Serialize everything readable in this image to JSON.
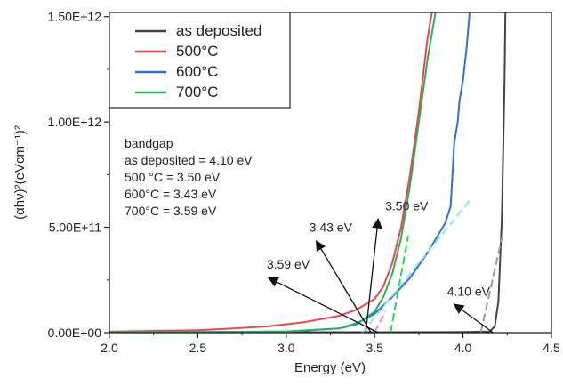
{
  "chart_data": {
    "type": "line",
    "xlabel": "Energy (eV)",
    "ylabel": "(αhν)²(eVcm⁻¹)²",
    "xlim": [
      2.0,
      4.5
    ],
    "ylim": [
      0,
      1520000000000.0
    ],
    "x_ticks": [
      2.0,
      2.5,
      3.0,
      3.5,
      4.0,
      4.5
    ],
    "x_tick_labels": [
      "2.0",
      "2.5",
      "3.0",
      "3.5",
      "4.0",
      "4.5"
    ],
    "y_ticks": [
      0,
      500000000000.0,
      1000000000000.0,
      1500000000000.0
    ],
    "y_tick_labels": [
      "0.00E+00",
      "5.00E+11",
      "1.00E+12",
      "1.50E+12"
    ],
    "grid": false,
    "legend_position": "top-left",
    "legend": [
      "as deposited",
      "500°C",
      "600°C",
      "700°C"
    ],
    "series": [
      {
        "name": "as deposited",
        "color": "#444444",
        "x": [
          2.0,
          3.0,
          3.5,
          4.0,
          4.15,
          4.18,
          4.2,
          4.22,
          4.235,
          4.24
        ],
        "y": [
          2000000000.0,
          2000000000.0,
          2000000000.0,
          3000000000.0,
          5000000000.0,
          30000000000.0,
          150000000000.0,
          550000000000.0,
          1200000000000.0,
          1550000000000.0
        ]
      },
      {
        "name": "500°C",
        "color": "#e8474f",
        "x": [
          2.0,
          2.3,
          2.5,
          2.7,
          2.9,
          3.1,
          3.3,
          3.4,
          3.5,
          3.55,
          3.6,
          3.65,
          3.7,
          3.75,
          3.8,
          3.83
        ],
        "y": [
          5000000000.0,
          9000000000.0,
          12000000000.0,
          20000000000.0,
          30000000000.0,
          50000000000.0,
          80000000000.0,
          110000000000.0,
          160000000000.0,
          220000000000.0,
          330000000000.0,
          500000000000.0,
          750000000000.0,
          1050000000000.0,
          1400000000000.0,
          1550000000000.0
        ]
      },
      {
        "name": "600°C",
        "color": "#2f6fd6",
        "x": [
          2.0,
          2.5,
          3.0,
          3.3,
          3.4,
          3.5,
          3.6,
          3.7,
          3.8,
          3.9,
          3.93,
          3.95,
          3.97,
          3.98,
          4.0,
          4.02,
          4.03,
          4.04
        ],
        "y": [
          2000000000.0,
          3000000000.0,
          5000000000.0,
          20000000000.0,
          45000000000.0,
          90000000000.0,
          170000000000.0,
          260000000000.0,
          380000000000.0,
          520000000000.0,
          600000000000.0,
          900000000000.0,
          1000000000000.0,
          1100000000000.0,
          1200000000000.0,
          1350000000000.0,
          1450000000000.0,
          1550000000000.0
        ]
      },
      {
        "name": "700°C",
        "color": "#2fae5a",
        "x": [
          2.0,
          2.5,
          3.0,
          3.3,
          3.4,
          3.5,
          3.55,
          3.6,
          3.65,
          3.7,
          3.75,
          3.8,
          3.85
        ],
        "y": [
          2000000000.0,
          3000000000.0,
          6000000000.0,
          20000000000.0,
          40000000000.0,
          100000000000.0,
          170000000000.0,
          280000000000.0,
          450000000000.0,
          700000000000.0,
          1000000000000.0,
          1300000000000.0,
          1550000000000.0
        ]
      }
    ],
    "tangent_lines": [
      {
        "color": "#9a9a9a",
        "x": [
          4.1,
          4.22
        ],
        "y": [
          0,
          450000000000.0
        ]
      },
      {
        "color": "#ff88cc",
        "x": [
          3.5,
          3.56
        ],
        "y": [
          0,
          100000000000.0
        ]
      },
      {
        "color": "#2fd64a",
        "x": [
          3.59,
          3.69
        ],
        "y": [
          0,
          460000000000.0
        ]
      },
      {
        "color": "#8ee3f2",
        "x": [
          3.43,
          4.05
        ],
        "y": [
          0,
          640000000000.0
        ]
      }
    ],
    "annotations": [
      {
        "text": "3.50 eV",
        "text_at": [
          3.56,
          580000000000.0
        ],
        "arrow_from": [
          3.45,
          0
        ],
        "arrow_to": [
          3.52,
          540000000000.0
        ]
      },
      {
        "text": "3.43 eV",
        "text_at": [
          3.13,
          480000000000.0
        ],
        "arrow_from": [
          3.48,
          0
        ],
        "arrow_to": [
          3.17,
          435000000000.0
        ]
      },
      {
        "text": "3.59 eV",
        "text_at": [
          2.89,
          305000000000.0
        ],
        "arrow_from": [
          3.52,
          0
        ],
        "arrow_to": [
          2.9,
          260000000000.0
        ]
      },
      {
        "text": "4.10 eV",
        "text_at": [
          3.91,
          175000000000.0
        ],
        "arrow_from": [
          4.17,
          0
        ],
        "arrow_to": [
          3.95,
          135000000000.0
        ]
      }
    ],
    "notes": [
      "bandgap",
      "as deposited = 4.10 eV",
      "500 °C = 3.50 eV",
      "600°C = 3.43 eV",
      "700°C = 3.59 eV"
    ]
  }
}
